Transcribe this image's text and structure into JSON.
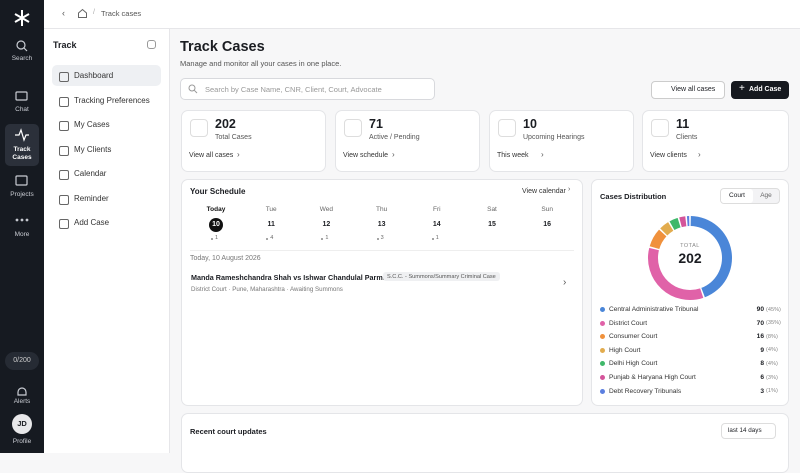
{
  "rail": {
    "items": [
      "Search",
      "Chat",
      "Track Cases",
      "Projects",
      "More"
    ],
    "counter": "0/200",
    "alerts": "Alerts",
    "profile": "Profile",
    "avatar": "JD"
  },
  "breadcrumb": "Track cases",
  "sidebar": {
    "title": "Track",
    "items": [
      "Dashboard",
      "Tracking Preferences",
      "My Cases",
      "My Clients",
      "Calendar",
      "Reminder",
      "Add Case"
    ]
  },
  "header": {
    "title": "Track Cases",
    "subtitle": "Manage and monitor all your cases in one place.",
    "search": "Search by Case Name, CNR, Client, Court, Advocate",
    "view_all": "View all cases",
    "add_case": "Add Case"
  },
  "stats": [
    {
      "value": 202,
      "label": "Total Cases",
      "link": "View all cases"
    },
    {
      "value": 71,
      "label": "Active / Pending",
      "link": "View schedule"
    },
    {
      "value": 10,
      "label": "Upcoming Hearings",
      "link": "This week"
    },
    {
      "value": 11,
      "label": "Clients",
      "link": "View clients"
    }
  ],
  "schedule": {
    "title": "Your Schedule",
    "link": "View calendar",
    "days": [
      {
        "day": "Today",
        "date": 10,
        "count": 1
      },
      {
        "day": "Tue",
        "date": 11,
        "count": 4
      },
      {
        "day": "Wed",
        "date": 12,
        "count": 1
      },
      {
        "day": "Thu",
        "date": 13,
        "count": 3
      },
      {
        "day": "Fri",
        "date": 14,
        "count": 1
      },
      {
        "day": "Sat",
        "date": 15,
        "count": null
      },
      {
        "day": "Sun",
        "date": 16,
        "count": null
      }
    ],
    "date_heading": "Today, 10 August 2026",
    "case": {
      "title": "Manda Rameshchandra Shah vs Ishwar Chandulal Parmar",
      "tag": "S.C.C. - Summons/Summary Criminal Case",
      "meta": "District Court · Pune, Maharashtra · Awaiting Summons"
    }
  },
  "distribution": {
    "title": "Cases Distribution",
    "tabs": [
      "Court",
      "Age"
    ],
    "total_label": "TOTAL",
    "total": 202,
    "items": [
      {
        "name": "Central Administrative Tribunal",
        "value": 90,
        "share": "(45%)",
        "color": "#4a86d8"
      },
      {
        "name": "District Court",
        "value": 70,
        "share": "(35%)",
        "color": "#e062a8"
      },
      {
        "name": "Consumer Court",
        "value": 16,
        "share": "(8%)",
        "color": "#f0913c"
      },
      {
        "name": "High Court",
        "value": 9,
        "share": "(4%)",
        "color": "#e2ac4e"
      },
      {
        "name": "Delhi High Court",
        "value": 8,
        "share": "(4%)",
        "color": "#3fb86a"
      },
      {
        "name": "Punjab & Haryana High Court",
        "value": 6,
        "share": "(3%)",
        "color": "#d4549a"
      },
      {
        "name": "Debt Recovery Tribunals",
        "value": 3,
        "share": "(1%)",
        "color": "#5b7fe0"
      }
    ]
  },
  "recent": {
    "title": "Recent court updates",
    "filter": "last 14 days"
  }
}
